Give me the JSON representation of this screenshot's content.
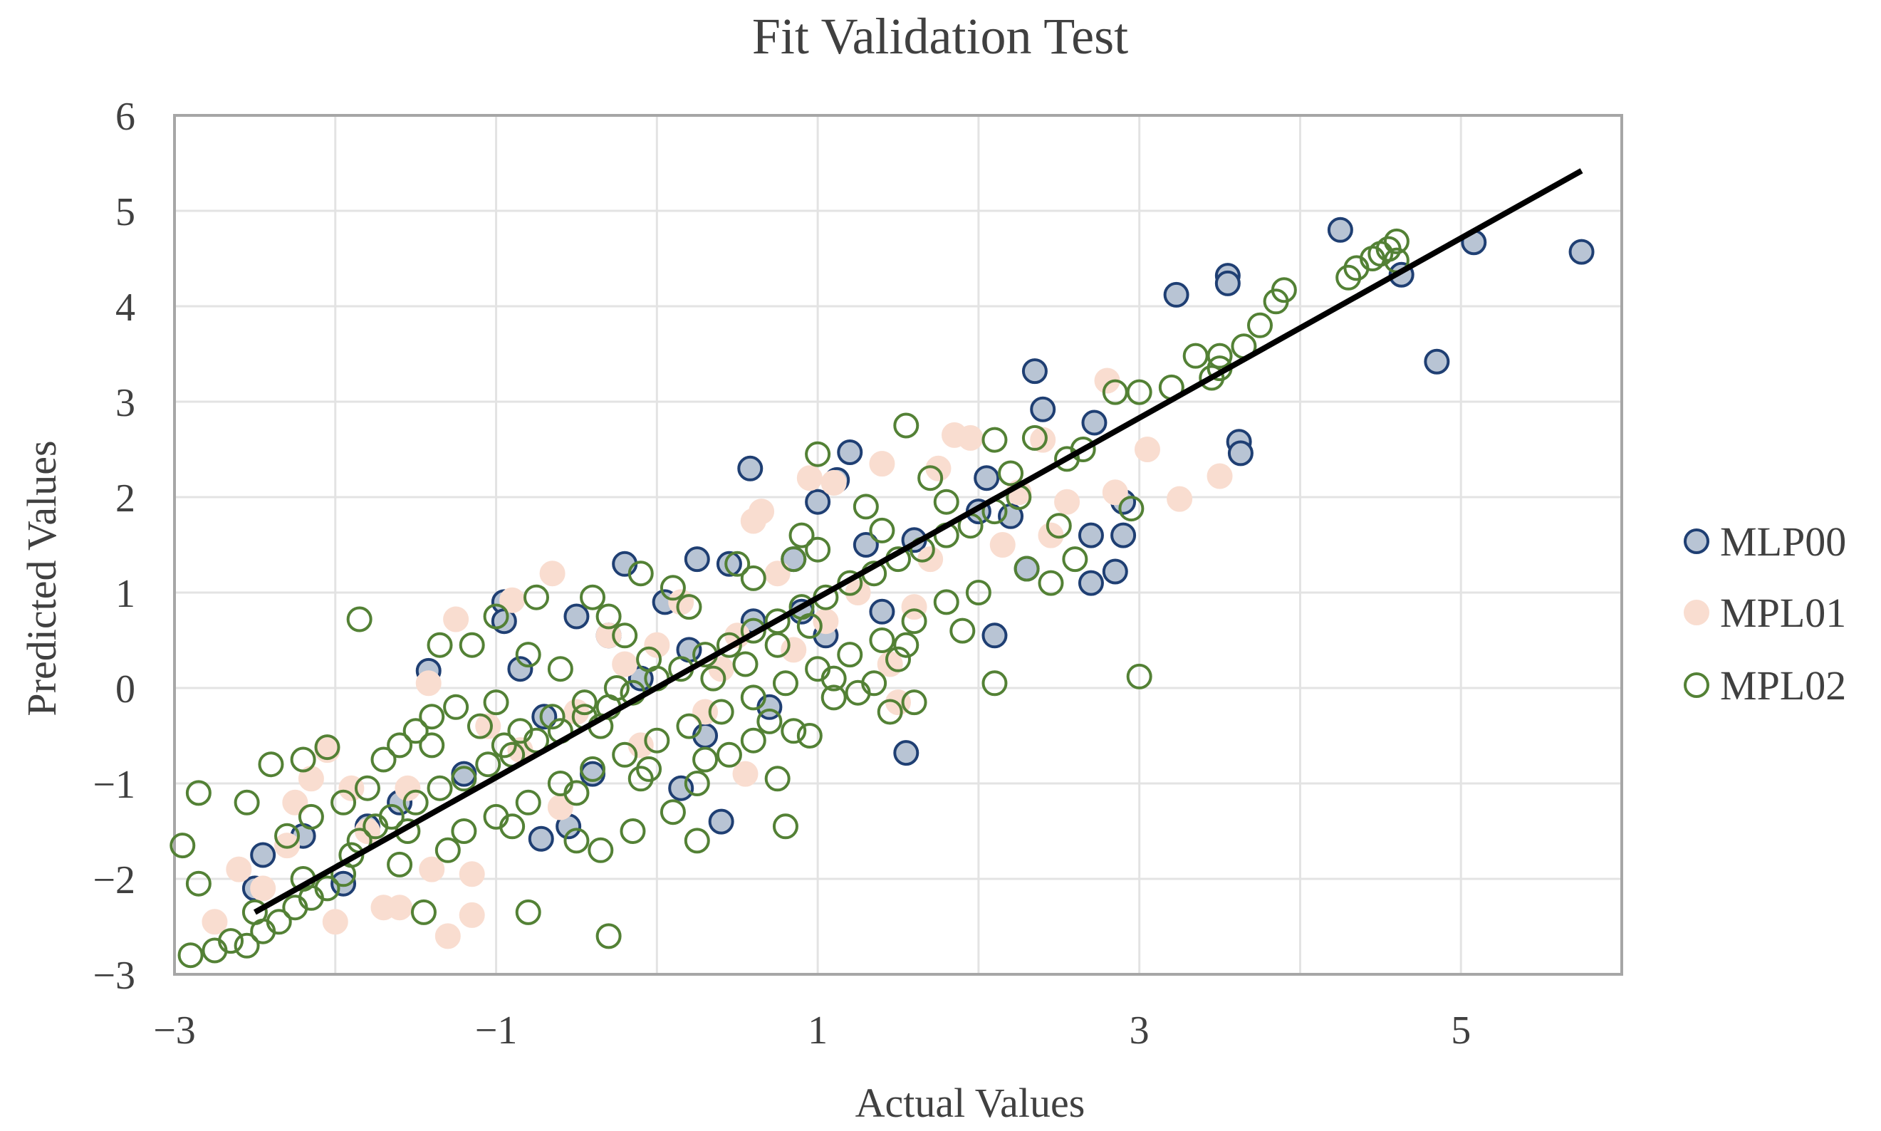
{
  "chart_data": {
    "type": "scatter",
    "title": "Fit Validation Test",
    "xlabel": "Actual Values",
    "ylabel": "Predicted Values",
    "xlim": [
      -3,
      6
    ],
    "ylim": [
      -3,
      6
    ],
    "x_ticks": [
      -3,
      -1,
      1,
      3,
      5
    ],
    "x_tick_labels": [
      "−3",
      "−1",
      "1",
      "3",
      "5"
    ],
    "y_ticks": [
      -3,
      -2,
      -1,
      0,
      1,
      2,
      3,
      4,
      5,
      6
    ],
    "y_tick_labels": [
      "−3",
      "−2",
      "−1",
      "0",
      "1",
      "2",
      "3",
      "4",
      "5",
      "6"
    ],
    "x_grid": [
      -3,
      -2,
      -1,
      0,
      1,
      2,
      3,
      4,
      5,
      6
    ],
    "grid": true,
    "legend_position": "right",
    "fit_line": {
      "x": [
        -2.5,
        5.75
      ],
      "y": [
        -2.35,
        5.42
      ],
      "color": "#000000"
    },
    "series": [
      {
        "name": "MLP00",
        "fill": "#b8c4d4",
        "stroke": "#1f3f73",
        "points": [
          [
            4.25,
            4.8
          ],
          [
            5.08,
            4.67
          ],
          [
            5.75,
            4.57
          ],
          [
            4.63,
            4.33
          ],
          [
            3.55,
            4.32
          ],
          [
            3.55,
            4.24
          ],
          [
            3.23,
            4.12
          ],
          [
            4.85,
            3.42
          ],
          [
            2.35,
            3.32
          ],
          [
            2.4,
            2.92
          ],
          [
            2.72,
            2.78
          ],
          [
            3.62,
            2.58
          ],
          [
            3.63,
            2.46
          ],
          [
            1.2,
            2.47
          ],
          [
            0.58,
            2.3
          ],
          [
            1.12,
            2.18
          ],
          [
            2.05,
            2.2
          ],
          [
            2.9,
            1.95
          ],
          [
            2.2,
            1.8
          ],
          [
            2.7,
            1.6
          ],
          [
            2.9,
            1.6
          ],
          [
            2.3,
            1.25
          ],
          [
            2.85,
            1.22
          ],
          [
            2.7,
            1.1
          ],
          [
            2.1,
            0.55
          ],
          [
            1.55,
            -0.68
          ],
          [
            0.4,
            -1.4
          ],
          [
            -0.5,
            0.75
          ],
          [
            -0.95,
            0.9
          ],
          [
            -0.95,
            0.7
          ],
          [
            -0.2,
            1.3
          ],
          [
            0.25,
            1.35
          ],
          [
            -1.42,
            0.18
          ],
          [
            -2.5,
            -2.1
          ],
          [
            -2.2,
            -1.55
          ],
          [
            -2.45,
            -1.75
          ],
          [
            -0.72,
            -1.58
          ],
          [
            0.15,
            -1.05
          ],
          [
            1.0,
            1.95
          ],
          [
            0.85,
            1.35
          ],
          [
            -0.55,
            -1.45
          ],
          [
            -1.95,
            -2.05
          ],
          [
            0.45,
            1.3
          ],
          [
            1.3,
            1.5
          ],
          [
            1.6,
            1.55
          ],
          [
            -0.3,
            0.55
          ],
          [
            0.3,
            -0.5
          ],
          [
            -0.1,
            0.1
          ],
          [
            0.6,
            0.7
          ],
          [
            0.9,
            0.8
          ],
          [
            -0.7,
            -0.3
          ],
          [
            -1.2,
            -0.9
          ],
          [
            -1.6,
            -1.2
          ],
          [
            0.05,
            0.9
          ],
          [
            1.4,
            0.8
          ],
          [
            -0.4,
            -0.9
          ],
          [
            0.2,
            0.4
          ],
          [
            0.7,
            -0.2
          ],
          [
            1.05,
            0.55
          ],
          [
            -0.85,
            0.2
          ],
          [
            -1.8,
            -1.45
          ],
          [
            2.0,
            1.85
          ]
        ]
      },
      {
        "name": "MPL01",
        "fill": "#f9ddd0",
        "stroke": "#f9ddd0",
        "points": [
          [
            2.8,
            3.22
          ],
          [
            3.05,
            2.5
          ],
          [
            2.4,
            2.6
          ],
          [
            2.85,
            2.05
          ],
          [
            3.25,
            1.98
          ],
          [
            3.5,
            2.22
          ],
          [
            1.85,
            2.65
          ],
          [
            1.95,
            2.62
          ],
          [
            1.75,
            2.3
          ],
          [
            1.4,
            2.35
          ],
          [
            1.1,
            2.15
          ],
          [
            0.95,
            2.2
          ],
          [
            0.65,
            1.85
          ],
          [
            0.6,
            1.75
          ],
          [
            -0.65,
            1.2
          ],
          [
            -0.9,
            0.92
          ],
          [
            -1.25,
            0.72
          ],
          [
            -0.3,
            0.55
          ],
          [
            -1.42,
            0.05
          ],
          [
            -2.05,
            -0.65
          ],
          [
            -2.15,
            -0.95
          ],
          [
            -2.25,
            -1.2
          ],
          [
            -2.6,
            -1.9
          ],
          [
            -2.45,
            -2.1
          ],
          [
            -2.75,
            -2.45
          ],
          [
            -2.0,
            -2.45
          ],
          [
            -1.7,
            -2.3
          ],
          [
            -1.6,
            -2.3
          ],
          [
            -1.3,
            -2.6
          ],
          [
            -1.15,
            -2.38
          ],
          [
            -1.15,
            -1.95
          ],
          [
            -1.4,
            -1.9
          ],
          [
            -1.8,
            -1.5
          ],
          [
            -1.55,
            -1.05
          ],
          [
            -0.5,
            -0.25
          ],
          [
            0.55,
            -0.9
          ],
          [
            0.5,
            0.55
          ],
          [
            0.15,
            0.9
          ],
          [
            1.5,
            -0.15
          ],
          [
            1.45,
            0.25
          ],
          [
            2.45,
            1.6
          ],
          [
            2.55,
            1.95
          ],
          [
            0.4,
            0.2
          ],
          [
            -0.1,
            -0.6
          ],
          [
            0.85,
            0.4
          ],
          [
            1.25,
            1.0
          ],
          [
            1.7,
            1.35
          ],
          [
            -0.2,
            0.25
          ],
          [
            -0.85,
            -0.65
          ],
          [
            0.3,
            -0.25
          ],
          [
            1.05,
            0.7
          ],
          [
            2.15,
            1.5
          ],
          [
            -1.05,
            -0.4
          ],
          [
            0.75,
            1.2
          ],
          [
            -0.6,
            -1.25
          ],
          [
            0.0,
            0.45
          ],
          [
            1.6,
            0.85
          ],
          [
            2.25,
            2.05
          ],
          [
            -2.3,
            -1.65
          ],
          [
            -1.9,
            -1.05
          ]
        ]
      },
      {
        "name": "MPL02",
        "fill": "none",
        "stroke": "#538135",
        "points": [
          [
            4.6,
            4.68
          ],
          [
            4.55,
            4.6
          ],
          [
            4.5,
            4.55
          ],
          [
            4.45,
            4.5
          ],
          [
            4.6,
            4.48
          ],
          [
            4.35,
            4.4
          ],
          [
            4.3,
            4.3
          ],
          [
            3.9,
            4.17
          ],
          [
            3.85,
            4.05
          ],
          [
            3.75,
            3.8
          ],
          [
            3.65,
            3.58
          ],
          [
            3.5,
            3.48
          ],
          [
            3.35,
            3.48
          ],
          [
            3.5,
            3.35
          ],
          [
            3.45,
            3.25
          ],
          [
            3.2,
            3.15
          ],
          [
            3.0,
            3.1
          ],
          [
            2.95,
            1.88
          ],
          [
            3.0,
            0.12
          ],
          [
            2.85,
            3.1
          ],
          [
            2.65,
            2.5
          ],
          [
            2.55,
            2.4
          ],
          [
            2.35,
            2.62
          ],
          [
            2.5,
            1.7
          ],
          [
            2.6,
            1.35
          ],
          [
            2.45,
            1.1
          ],
          [
            2.3,
            1.25
          ],
          [
            2.1,
            2.6
          ],
          [
            2.1,
            0.05
          ],
          [
            1.55,
            2.75
          ],
          [
            1.55,
            0.45
          ],
          [
            1.6,
            -0.15
          ],
          [
            1.45,
            -0.25
          ],
          [
            1.35,
            0.05
          ],
          [
            1.1,
            0.1
          ],
          [
            1.25,
            -0.05
          ],
          [
            1.0,
            2.45
          ],
          [
            0.85,
            1.35
          ],
          [
            0.85,
            -0.45
          ],
          [
            0.75,
            -0.95
          ],
          [
            0.8,
            -1.45
          ],
          [
            0.95,
            -0.5
          ],
          [
            0.6,
            -0.55
          ],
          [
            0.45,
            -0.7
          ],
          [
            0.25,
            -1.0
          ],
          [
            0.1,
            -1.3
          ],
          [
            -0.05,
            -0.85
          ],
          [
            -0.35,
            -0.4
          ],
          [
            -0.5,
            -1.6
          ],
          [
            -0.35,
            -1.7
          ],
          [
            -0.15,
            -1.5
          ],
          [
            0.25,
            -1.6
          ],
          [
            -0.3,
            -2.6
          ],
          [
            -0.8,
            -2.35
          ],
          [
            -1.45,
            -2.35
          ],
          [
            -1.85,
            0.72
          ],
          [
            -1.0,
            0.75
          ],
          [
            -0.75,
            0.95
          ],
          [
            -0.4,
            0.95
          ],
          [
            -0.1,
            1.2
          ],
          [
            -1.35,
            0.45
          ],
          [
            -1.15,
            0.45
          ],
          [
            -2.85,
            -1.1
          ],
          [
            -2.95,
            -1.65
          ],
          [
            -2.85,
            -2.05
          ],
          [
            -2.9,
            -2.8
          ],
          [
            -2.75,
            -2.75
          ],
          [
            -2.65,
            -2.65
          ],
          [
            -2.55,
            -2.7
          ],
          [
            -2.45,
            -2.55
          ],
          [
            -2.35,
            -2.45
          ],
          [
            -2.25,
            -2.3
          ],
          [
            -2.15,
            -2.2
          ],
          [
            -2.05,
            -2.1
          ],
          [
            -1.95,
            -1.95
          ],
          [
            -2.55,
            -1.2
          ],
          [
            -2.4,
            -0.8
          ],
          [
            -2.2,
            -0.75
          ],
          [
            -2.05,
            -0.62
          ],
          [
            -2.3,
            -1.55
          ],
          [
            -2.15,
            -1.35
          ],
          [
            -1.95,
            -1.2
          ],
          [
            -1.8,
            -1.05
          ],
          [
            -1.7,
            -0.75
          ],
          [
            -1.6,
            -0.6
          ],
          [
            -1.5,
            -0.45
          ],
          [
            -1.4,
            -0.3
          ],
          [
            -1.25,
            -0.2
          ],
          [
            -1.1,
            -0.4
          ],
          [
            -0.95,
            -0.6
          ],
          [
            -1.85,
            -1.6
          ],
          [
            -1.75,
            -1.45
          ],
          [
            -1.65,
            -1.35
          ],
          [
            -1.5,
            -1.2
          ],
          [
            -1.35,
            -1.05
          ],
          [
            -1.2,
            -0.95
          ],
          [
            -1.05,
            -0.8
          ],
          [
            -0.9,
            -0.7
          ],
          [
            -0.75,
            -0.55
          ],
          [
            -0.6,
            -0.45
          ],
          [
            -0.45,
            -0.3
          ],
          [
            -0.3,
            -0.2
          ],
          [
            -0.15,
            -0.05
          ],
          [
            0.0,
            0.1
          ],
          [
            0.15,
            0.2
          ],
          [
            0.3,
            0.35
          ],
          [
            0.45,
            0.45
          ],
          [
            0.6,
            0.6
          ],
          [
            0.75,
            0.7
          ],
          [
            0.9,
            0.85
          ],
          [
            1.05,
            0.95
          ],
          [
            1.2,
            1.1
          ],
          [
            1.35,
            1.2
          ],
          [
            1.5,
            1.35
          ],
          [
            1.65,
            1.45
          ],
          [
            1.8,
            1.6
          ],
          [
            1.95,
            1.7
          ],
          [
            2.1,
            1.85
          ],
          [
            2.25,
            2.0
          ],
          [
            -1.2,
            -1.5
          ],
          [
            -1.0,
            -1.35
          ],
          [
            -0.8,
            -1.2
          ],
          [
            -0.6,
            -1.0
          ],
          [
            -0.4,
            -0.85
          ],
          [
            -0.2,
            -0.7
          ],
          [
            0.0,
            -0.55
          ],
          [
            0.2,
            -0.4
          ],
          [
            0.4,
            -0.25
          ],
          [
            0.6,
            -0.1
          ],
          [
            0.8,
            0.05
          ],
          [
            1.0,
            0.2
          ],
          [
            1.2,
            0.35
          ],
          [
            1.4,
            0.5
          ],
          [
            1.6,
            0.7
          ],
          [
            1.8,
            0.9
          ],
          [
            2.0,
            1.0
          ],
          [
            -1.4,
            -0.6
          ],
          [
            -1.0,
            -0.15
          ],
          [
            -0.6,
            0.2
          ],
          [
            -0.2,
            0.55
          ],
          [
            0.2,
            0.85
          ],
          [
            0.6,
            1.15
          ],
          [
            1.0,
            1.45
          ],
          [
            1.4,
            1.65
          ],
          [
            1.8,
            1.95
          ],
          [
            2.2,
            2.25
          ],
          [
            -1.6,
            -1.85
          ],
          [
            -1.3,
            -1.7
          ],
          [
            -0.9,
            -1.45
          ],
          [
            -0.5,
            -1.1
          ],
          [
            -0.1,
            -0.95
          ],
          [
            0.3,
            -0.75
          ],
          [
            0.7,
            -0.35
          ],
          [
            1.1,
            -0.1
          ],
          [
            1.5,
            0.3
          ],
          [
            1.9,
            0.6
          ],
          [
            -0.8,
            0.35
          ],
          [
            -0.3,
            0.75
          ],
          [
            0.1,
            1.05
          ],
          [
            0.5,
            1.3
          ],
          [
            0.9,
            1.6
          ],
          [
            1.3,
            1.9
          ],
          [
            1.7,
            2.2
          ],
          [
            -2.5,
            -2.35
          ],
          [
            -2.2,
            -2.0
          ],
          [
            -1.9,
            -1.75
          ],
          [
            -1.55,
            -1.5
          ],
          [
            0.35,
            0.1
          ],
          [
            0.55,
            0.25
          ],
          [
            0.75,
            0.45
          ],
          [
            0.95,
            0.65
          ],
          [
            -0.05,
            0.3
          ],
          [
            -0.25,
            0.0
          ],
          [
            -0.45,
            -0.15
          ],
          [
            -0.65,
            -0.3
          ],
          [
            -0.85,
            -0.45
          ]
        ]
      }
    ]
  }
}
